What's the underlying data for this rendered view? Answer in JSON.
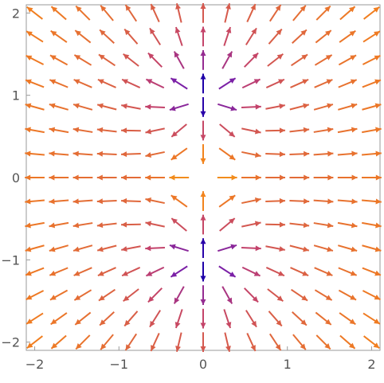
{
  "chart_data": {
    "type": "vector-field",
    "title": "",
    "xlabel": "",
    "ylabel": "",
    "xlim": [
      -2.1,
      2.1
    ],
    "ylim": [
      -2.1,
      2.1
    ],
    "grid": false,
    "x_ticks": [
      {
        "value": -2,
        "label": "−2"
      },
      {
        "value": -1,
        "label": "−1"
      },
      {
        "value": 0,
        "label": "0"
      },
      {
        "value": 1,
        "label": "1"
      },
      {
        "value": 2,
        "label": "2"
      }
    ],
    "y_ticks": [
      {
        "value": -2,
        "label": "−2"
      },
      {
        "value": -1,
        "label": "−1"
      },
      {
        "value": 0,
        "label": "0"
      },
      {
        "value": 1,
        "label": "1"
      },
      {
        "value": 2,
        "label": "2"
      }
    ],
    "field": {
      "sample_range": [
        -2,
        2
      ],
      "samples_per_axis": 15,
      "singular_points": [
        [
          0,
          1
        ],
        [
          0,
          -1
        ]
      ],
      "colormap": [
        "#1e00a8",
        "#6f1ab0",
        "#c2416d",
        "#f27f1d",
        "#f4c41a"
      ]
    },
    "colors": {
      "frame": "#9a9a9a",
      "tick_label": "#555555"
    }
  }
}
